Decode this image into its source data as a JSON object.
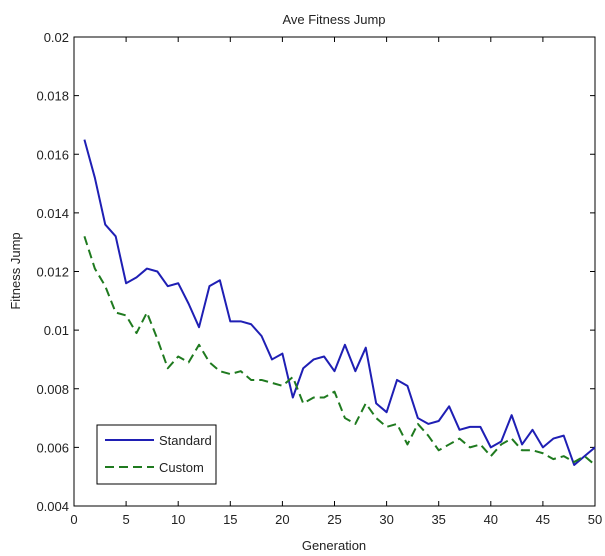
{
  "chart_data": {
    "type": "line",
    "title": "Ave Fitness Jump",
    "xlabel": "Generation",
    "ylabel": "Fitness Jump",
    "xlim": [
      0,
      50
    ],
    "ylim": [
      0.004,
      0.02
    ],
    "xticks": [
      0,
      5,
      10,
      15,
      20,
      25,
      30,
      35,
      40,
      45,
      50
    ],
    "yticks": [
      0.004,
      0.006,
      0.008,
      0.01,
      0.012,
      0.014,
      0.016,
      0.018,
      0.02
    ],
    "ytick_labels": [
      "0.004",
      "0.006",
      "0.008",
      "0.01",
      "0.012",
      "0.014",
      "0.016",
      "0.018",
      "0.02"
    ],
    "grid": false,
    "legend_position": "bottom-left",
    "x": [
      1,
      2,
      3,
      4,
      5,
      6,
      7,
      8,
      9,
      10,
      11,
      12,
      13,
      14,
      15,
      16,
      17,
      18,
      19,
      20,
      21,
      22,
      23,
      24,
      25,
      26,
      27,
      28,
      29,
      30,
      31,
      32,
      33,
      34,
      35,
      36,
      37,
      38,
      39,
      40,
      41,
      42,
      43,
      44,
      45,
      46,
      47,
      48,
      49,
      50
    ],
    "series": [
      {
        "name": "Standard",
        "color": "#1f1fb4",
        "style": "solid",
        "values": [
          0.0165,
          0.0152,
          0.0136,
          0.0132,
          0.0116,
          0.0118,
          0.0121,
          0.012,
          0.0115,
          0.0116,
          0.0109,
          0.0101,
          0.0115,
          0.0117,
          0.0103,
          0.0103,
          0.0102,
          0.0098,
          0.009,
          0.0092,
          0.0077,
          0.0087,
          0.009,
          0.0091,
          0.0086,
          0.0095,
          0.0086,
          0.0094,
          0.0075,
          0.0072,
          0.0083,
          0.0081,
          0.007,
          0.0068,
          0.0069,
          0.0074,
          0.0066,
          0.0067,
          0.0067,
          0.006,
          0.0062,
          0.0071,
          0.0061,
          0.0066,
          0.006,
          0.0063,
          0.0064,
          0.0054,
          0.0057,
          0.006
        ]
      },
      {
        "name": "Custom",
        "color": "#1f7a1f",
        "style": "dashed",
        "values": [
          0.0132,
          0.0121,
          0.0115,
          0.0106,
          0.0105,
          0.0099,
          0.0106,
          0.0097,
          0.0087,
          0.0091,
          0.0089,
          0.0095,
          0.0089,
          0.0086,
          0.0085,
          0.0086,
          0.0083,
          0.0083,
          0.0082,
          0.0081,
          0.0084,
          0.0075,
          0.0077,
          0.0077,
          0.0079,
          0.007,
          0.0068,
          0.0075,
          0.007,
          0.0067,
          0.0068,
          0.0061,
          0.0068,
          0.0064,
          0.0059,
          0.0061,
          0.0063,
          0.006,
          0.0061,
          0.0057,
          0.0061,
          0.0063,
          0.0059,
          0.0059,
          0.0058,
          0.0056,
          0.0057,
          0.0055,
          0.0057,
          0.0054
        ]
      }
    ]
  }
}
